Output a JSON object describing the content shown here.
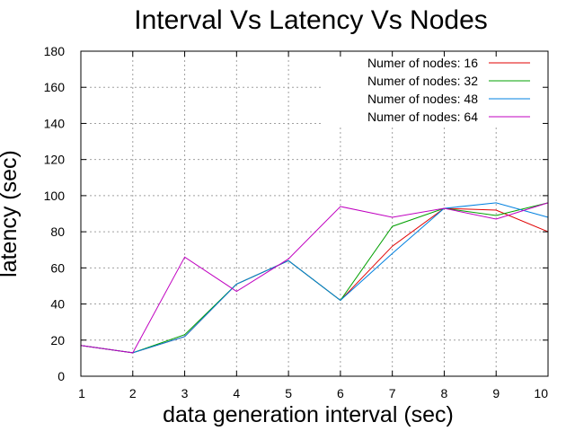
{
  "chart_data": {
    "type": "line",
    "title": "Interval Vs Latency Vs Nodes",
    "xlabel": "data generation interval (sec)",
    "ylabel": "latency (sec)",
    "xlim": [
      1,
      10
    ],
    "ylim": [
      0,
      180
    ],
    "x": [
      1,
      2,
      3,
      4,
      5,
      6,
      7,
      8,
      9,
      10
    ],
    "xticks": [
      1,
      2,
      3,
      4,
      5,
      6,
      7,
      8,
      9,
      10
    ],
    "yticks": [
      0,
      20,
      40,
      60,
      80,
      100,
      120,
      140,
      160,
      180
    ],
    "grid": true,
    "legend_position": "top-right",
    "series": [
      {
        "name": "Numer of nodes: 16",
        "color": "#e00000",
        "values": [
          17,
          13,
          22,
          51,
          64,
          42,
          72,
          93,
          92,
          80
        ]
      },
      {
        "name": "Numer of nodes: 32",
        "color": "#00a000",
        "values": [
          17,
          13,
          23,
          51,
          64,
          42,
          83,
          93,
          89,
          96
        ]
      },
      {
        "name": "Numer of nodes: 48",
        "color": "#0080e0",
        "values": [
          17,
          13,
          22,
          51,
          64,
          42,
          68,
          93,
          96,
          88
        ]
      },
      {
        "name": "Numer of nodes: 64",
        "color": "#c000c0",
        "values": [
          17,
          13,
          66,
          47,
          65,
          94,
          88,
          93,
          87,
          96
        ]
      }
    ]
  }
}
